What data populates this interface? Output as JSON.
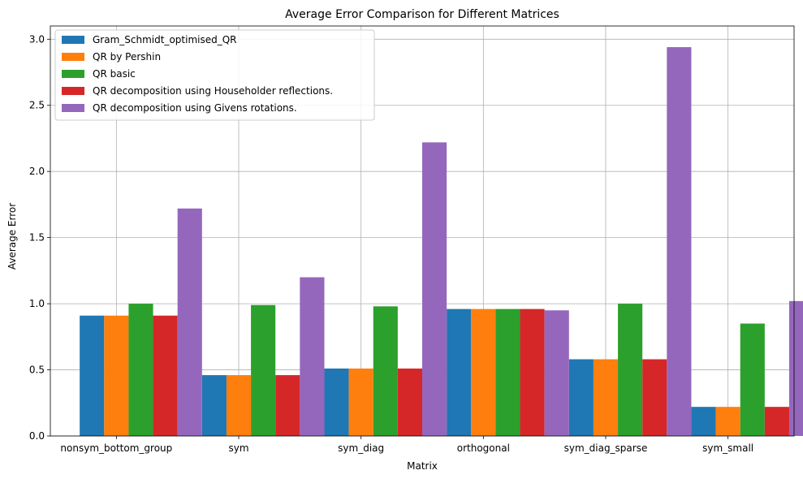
{
  "chart_data": {
    "type": "bar",
    "title": "Average Error Comparison for Different Matrices",
    "xlabel": "Matrix",
    "ylabel": "Average Error",
    "ylim": [
      0,
      3.1
    ],
    "yticks": [
      0.0,
      0.5,
      1.0,
      1.5,
      2.0,
      2.5,
      3.0
    ],
    "ytick_labels": [
      "0.0",
      "0.5",
      "1.0",
      "1.5",
      "2.0",
      "2.5",
      "3.0"
    ],
    "grid": true,
    "legend_position": "top-left",
    "categories": [
      "nonsym_bottom_group",
      "sym",
      "sym_diag",
      "orthogonal",
      "sym_diag_sparse",
      "sym_small"
    ],
    "series": [
      {
        "name": "Gram_Schmidt_optimised_QR",
        "color": "#1f77b4",
        "values": [
          0.91,
          0.46,
          0.51,
          0.96,
          0.58,
          0.22
        ]
      },
      {
        "name": "QR by Pershin",
        "color": "#ff7f0e",
        "values": [
          0.91,
          0.46,
          0.51,
          0.96,
          0.58,
          0.22
        ]
      },
      {
        "name": "QR basic",
        "color": "#2ca02c",
        "values": [
          1.0,
          0.99,
          0.98,
          0.96,
          1.0,
          0.85
        ]
      },
      {
        "name": "QR decomposition using Householder reflections.",
        "color": "#d62728",
        "values": [
          0.91,
          0.46,
          0.51,
          0.96,
          0.58,
          0.22
        ]
      },
      {
        "name": "QR decomposition using Givens rotations.",
        "color": "#9467bd",
        "values": [
          1.72,
          1.2,
          2.22,
          0.95,
          2.94,
          1.02
        ]
      }
    ]
  }
}
